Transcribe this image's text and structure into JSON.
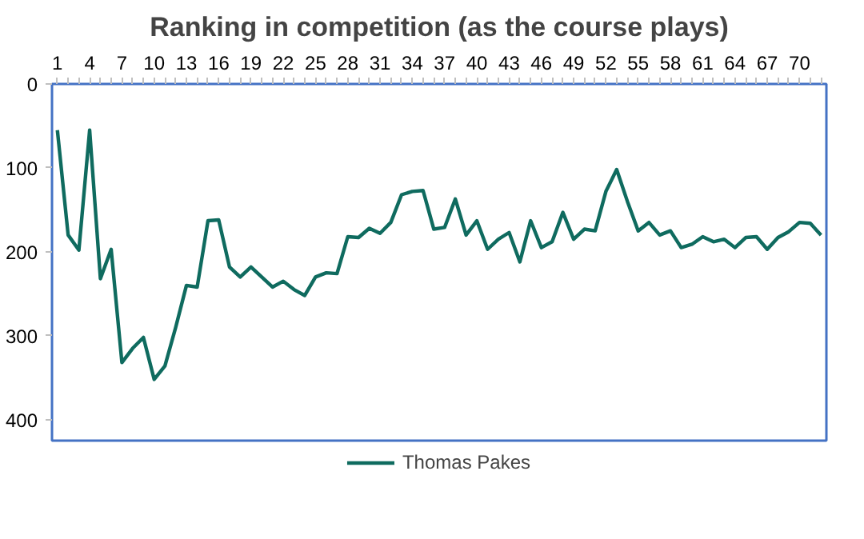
{
  "chart_data": {
    "type": "line",
    "title": "Ranking in competition (as the course plays)",
    "x": [
      1,
      2,
      3,
      4,
      5,
      6,
      7,
      8,
      9,
      10,
      11,
      12,
      13,
      14,
      15,
      16,
      17,
      18,
      19,
      20,
      21,
      22,
      23,
      24,
      25,
      26,
      27,
      28,
      29,
      30,
      31,
      32,
      33,
      34,
      35,
      36,
      37,
      38,
      39,
      40,
      41,
      42,
      43,
      44,
      45,
      46,
      47,
      48,
      49,
      50,
      51,
      52,
      53,
      54,
      55,
      56,
      57,
      58,
      59,
      60,
      61,
      62,
      63,
      64,
      65,
      66,
      67,
      68,
      69,
      70,
      71,
      72
    ],
    "series": [
      {
        "name": "Thomas Pakes",
        "color": "#0f6b5f",
        "values": [
          55,
          180,
          198,
          55,
          232,
          197,
          332,
          315,
          302,
          352,
          336,
          290,
          240,
          242,
          163,
          162,
          218,
          230,
          218,
          230,
          242,
          235,
          245,
          252,
          230,
          225,
          226,
          182,
          183,
          172,
          178,
          165,
          132,
          128,
          127,
          173,
          171,
          137,
          180,
          163,
          197,
          185,
          177,
          212,
          163,
          195,
          188,
          153,
          185,
          173,
          175,
          128,
          102,
          140,
          175,
          165,
          180,
          175,
          195,
          191,
          182,
          188,
          185,
          195,
          183,
          182,
          197,
          183,
          176,
          165,
          166,
          180
        ]
      }
    ],
    "xlim": [
      0.5,
      72.5
    ],
    "xticks": [
      1,
      {
        "value": 2,
        "label": null
      },
      {
        "value": 3,
        "label": null
      },
      4,
      {
        "value": 5,
        "label": null
      },
      {
        "value": 6,
        "label": null
      },
      7,
      {
        "value": 8,
        "label": null
      },
      {
        "value": 9,
        "label": null
      },
      10,
      {
        "value": 11,
        "label": null
      },
      {
        "value": 12,
        "label": null
      },
      13,
      {
        "value": 14,
        "label": null
      },
      {
        "value": 15,
        "label": null
      },
      16,
      {
        "value": 17,
        "label": null
      },
      {
        "value": 18,
        "label": null
      },
      19,
      {
        "value": 20,
        "label": null
      },
      {
        "value": 21,
        "label": null
      },
      22,
      {
        "value": 23,
        "label": null
      },
      {
        "value": 24,
        "label": null
      },
      25,
      {
        "value": 26,
        "label": null
      },
      {
        "value": 27,
        "label": null
      },
      28,
      {
        "value": 29,
        "label": null
      },
      {
        "value": 30,
        "label": null
      },
      31,
      {
        "value": 32,
        "label": null
      },
      {
        "value": 33,
        "label": null
      },
      34,
      {
        "value": 35,
        "label": null
      },
      {
        "value": 36,
        "label": null
      },
      37,
      {
        "value": 38,
        "label": null
      },
      {
        "value": 39,
        "label": null
      },
      40,
      {
        "value": 41,
        "label": null
      },
      {
        "value": 42,
        "label": null
      },
      43,
      {
        "value": 44,
        "label": null
      },
      {
        "value": 45,
        "label": null
      },
      46,
      {
        "value": 47,
        "label": null
      },
      {
        "value": 48,
        "label": null
      },
      49,
      {
        "value": 50,
        "label": null
      },
      {
        "value": 51,
        "label": null
      },
      52,
      {
        "value": 53,
        "label": null
      },
      {
        "value": 54,
        "label": null
      },
      55,
      {
        "value": 56,
        "label": null
      },
      {
        "value": 57,
        "label": null
      },
      58,
      {
        "value": 59,
        "label": null
      },
      {
        "value": 60,
        "label": null
      },
      61,
      {
        "value": 62,
        "label": null
      },
      {
        "value": 63,
        "label": null
      },
      64,
      {
        "value": 65,
        "label": null
      },
      {
        "value": 66,
        "label": null
      },
      67,
      {
        "value": 68,
        "label": null
      },
      {
        "value": 69,
        "label": null
      },
      70,
      {
        "value": 71,
        "label": null
      },
      {
        "value": 72,
        "label": null
      }
    ],
    "ylim": [
      425,
      0
    ],
    "yticks": [
      0,
      100,
      200,
      300,
      400
    ],
    "grid": false,
    "legend": "bottom",
    "marker": "none",
    "line_style": "solid"
  }
}
